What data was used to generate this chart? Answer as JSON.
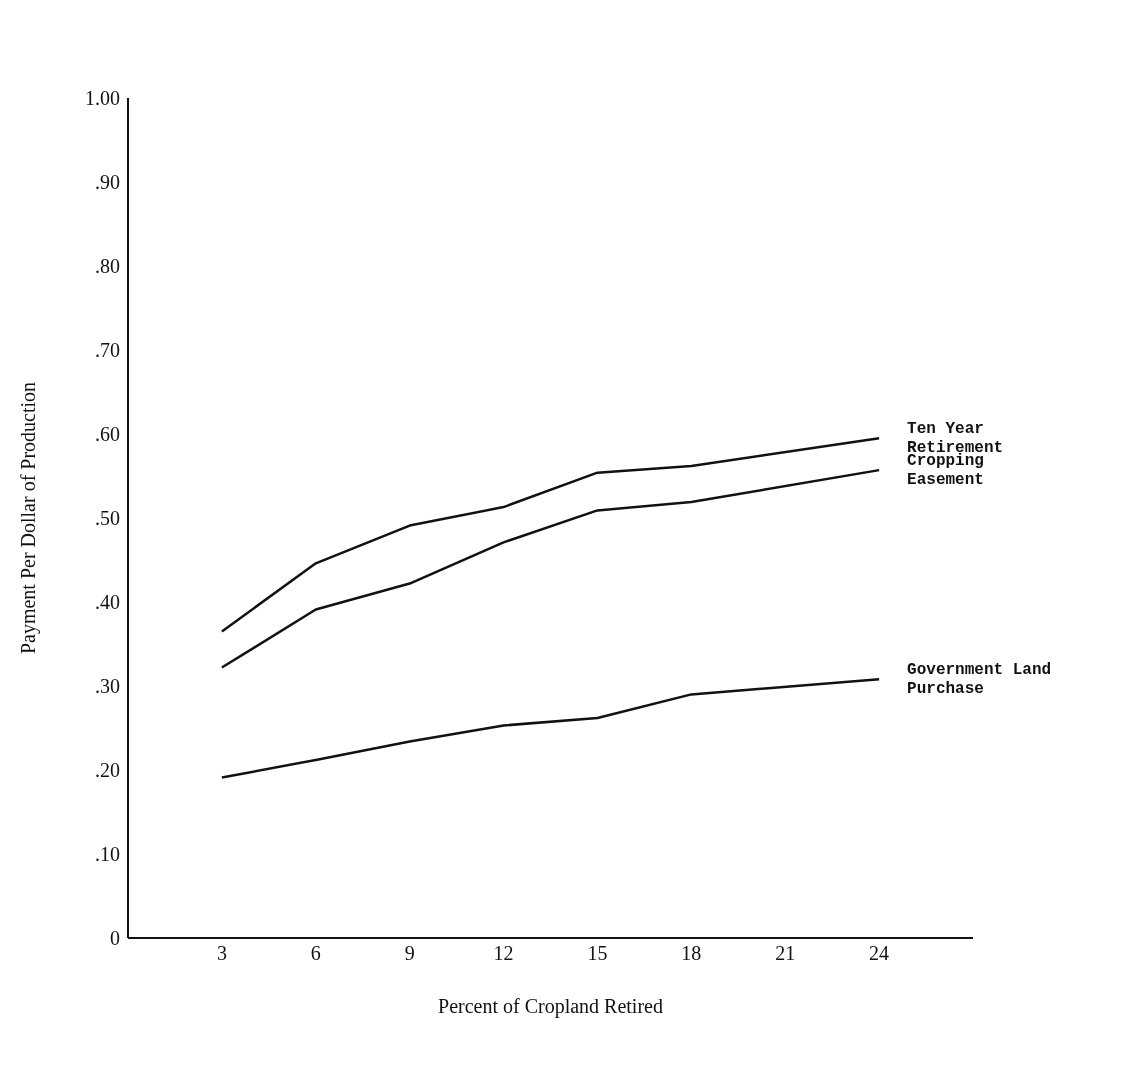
{
  "chart_data": {
    "type": "line",
    "xlabel": "Percent of Cropland Retired",
    "ylabel": "Payment Per Dollar of Production",
    "x": [
      3,
      6,
      9,
      12,
      15,
      18,
      24
    ],
    "series": [
      {
        "name": "Ten Year Retirement",
        "color": "#111111",
        "values": [
          0.365,
          0.446,
          0.491,
          0.513,
          0.554,
          0.562,
          0.595
        ]
      },
      {
        "name": "Cropping Easement",
        "color": "#111111",
        "values": [
          0.322,
          0.391,
          0.422,
          0.471,
          0.509,
          0.519,
          0.557
        ]
      },
      {
        "name": "Government Land Purchase",
        "color": "#111111",
        "values": [
          0.191,
          0.212,
          0.234,
          0.253,
          0.262,
          0.29,
          0.308
        ]
      }
    ],
    "xlim": [
      0,
      27
    ],
    "xticks": [
      3,
      6,
      9,
      12,
      15,
      18,
      21,
      24
    ],
    "ylim": [
      0,
      1
    ],
    "yticks": [
      {
        "value": 0,
        "label": "0"
      },
      {
        "value": 0.1,
        "label": ".10"
      },
      {
        "value": 0.2,
        "label": ".20"
      },
      {
        "value": 0.3,
        "label": ".30"
      },
      {
        "value": 0.4,
        "label": ".40"
      },
      {
        "value": 0.5,
        "label": ".50"
      },
      {
        "value": 0.6,
        "label": ".60"
      },
      {
        "value": 0.7,
        "label": ".70"
      },
      {
        "value": 0.8,
        "label": ".80"
      },
      {
        "value": 0.9,
        "label": ".90"
      },
      {
        "value": 1,
        "label": "1.00"
      }
    ],
    "grid": false,
    "marker": "none",
    "line_style": "solid",
    "legend": false
  }
}
